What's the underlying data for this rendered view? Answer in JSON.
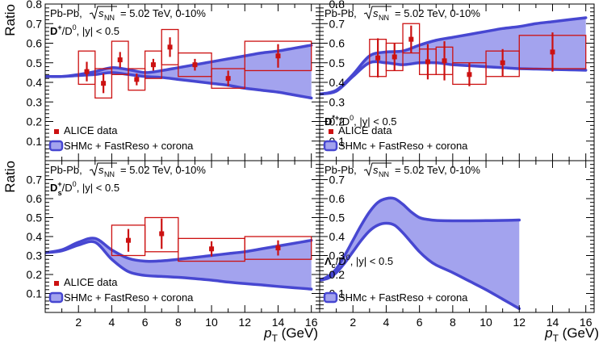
{
  "figure": {
    "x_axis_title": "p",
    "x_axis_title_sub": "T",
    "x_axis_title_unit": "(GeV)",
    "y_axis_title": "Ratio",
    "colors": {
      "band_fill": "#a3a3ee",
      "band_edge": "#4747d1",
      "data": "#cc1111",
      "frame": "#000000"
    }
  },
  "chart_data": [
    {
      "type": "scatter",
      "panel": "top-left",
      "energy_prefix": "Pb-Pb,",
      "energy_suffix": "= 5.02 TeV, 0-10%",
      "ratio_label": "D+/D0, |y| < 0.5",
      "ratio_main": "D",
      "ratio_sup": "+",
      "ratio_rest": "/D",
      "ratio_rest_sup": "0",
      "ratio_tail": ", |y| < 0.5",
      "legend_data": "ALICE data",
      "legend_model": "SHMc + FastReso + corona",
      "xlim": [
        0,
        16.5
      ],
      "ylim": [
        0,
        0.8
      ],
      "x_ticks": [
        2,
        4,
        6,
        8,
        10,
        12,
        14,
        16
      ],
      "y_ticks": [
        0.1,
        0.2,
        0.3,
        0.4,
        0.5,
        0.6,
        0.7,
        0.8
      ],
      "points": [
        {
          "x": 2.5,
          "y": 0.455,
          "stat": 0.05,
          "sys_lo": 0.39,
          "sys_hi": 0.56,
          "xlo": 2.0,
          "xhi": 3.0
        },
        {
          "x": 3.5,
          "y": 0.395,
          "stat": 0.05,
          "sys_lo": 0.32,
          "sys_hi": 0.47,
          "xlo": 3.0,
          "xhi": 4.0
        },
        {
          "x": 4.5,
          "y": 0.515,
          "stat": 0.04,
          "sys_lo": 0.44,
          "sys_hi": 0.61,
          "xlo": 4.0,
          "xhi": 5.0
        },
        {
          "x": 5.5,
          "y": 0.415,
          "stat": 0.03,
          "sys_lo": 0.36,
          "sys_hi": 0.47,
          "xlo": 5.0,
          "xhi": 6.0
        },
        {
          "x": 6.5,
          "y": 0.49,
          "stat": 0.03,
          "sys_lo": 0.42,
          "sys_hi": 0.56,
          "xlo": 6.0,
          "xhi": 7.0
        },
        {
          "x": 7.5,
          "y": 0.58,
          "stat": 0.05,
          "sys_lo": 0.49,
          "sys_hi": 0.67,
          "xlo": 7.0,
          "xhi": 8.0
        },
        {
          "x": 9.0,
          "y": 0.49,
          "stat": 0.03,
          "sys_lo": 0.43,
          "sys_hi": 0.55,
          "xlo": 8.0,
          "xhi": 10.0
        },
        {
          "x": 11.0,
          "y": 0.42,
          "stat": 0.04,
          "sys_lo": 0.37,
          "sys_hi": 0.47,
          "xlo": 10.0,
          "xhi": 12.0
        },
        {
          "x": 14.0,
          "y": 0.535,
          "stat": 0.06,
          "sys_lo": 0.46,
          "sys_hi": 0.61,
          "xlo": 12.0,
          "xhi": 16.0
        }
      ],
      "band_x": [
        0,
        1,
        2,
        3,
        4,
        5,
        6,
        7,
        8,
        9,
        10,
        11,
        12,
        13,
        14,
        15,
        16
      ],
      "band_upper": [
        0.43,
        0.43,
        0.44,
        0.455,
        0.475,
        0.465,
        0.45,
        0.46,
        0.475,
        0.49,
        0.505,
        0.52,
        0.535,
        0.55,
        0.56,
        0.575,
        0.59
      ],
      "band_lower": [
        0.43,
        0.43,
        0.435,
        0.44,
        0.45,
        0.44,
        0.43,
        0.425,
        0.415,
        0.405,
        0.395,
        0.385,
        0.37,
        0.36,
        0.35,
        0.335,
        0.32
      ]
    },
    {
      "type": "scatter",
      "panel": "top-right",
      "energy_prefix": "Pb-Pb,",
      "energy_suffix": "= 5.02 TeV, 0-10%",
      "ratio_label": "D*+/D0, |y| < 0.5",
      "ratio_main": "D",
      "ratio_sup": "*+",
      "ratio_rest": "/D",
      "ratio_rest_sup": "0",
      "ratio_tail": ", |y| < 0.5",
      "legend_data": "ALICE data",
      "legend_model": "SHMc + FastReso + corona",
      "xlim": [
        0,
        16.5
      ],
      "ylim": [
        0,
        0.8
      ],
      "x_ticks": [
        2,
        4,
        6,
        8,
        10,
        12,
        14,
        16
      ],
      "y_ticks": [
        0.1,
        0.2,
        0.3,
        0.4,
        0.5,
        0.6,
        0.7,
        0.8
      ],
      "points": [
        {
          "x": 3.5,
          "y": 0.525,
          "stat": 0.1,
          "sys_lo": 0.43,
          "sys_hi": 0.62,
          "xlo": 3.0,
          "xhi": 4.0
        },
        {
          "x": 4.5,
          "y": 0.53,
          "stat": 0.07,
          "sys_lo": 0.46,
          "sys_hi": 0.6,
          "xlo": 4.0,
          "xhi": 5.0
        },
        {
          "x": 5.5,
          "y": 0.62,
          "stat": 0.07,
          "sys_lo": 0.55,
          "sys_hi": 0.7,
          "xlo": 5.0,
          "xhi": 6.0
        },
        {
          "x": 6.5,
          "y": 0.505,
          "stat": 0.09,
          "sys_lo": 0.44,
          "sys_hi": 0.57,
          "xlo": 6.0,
          "xhi": 7.0
        },
        {
          "x": 7.5,
          "y": 0.51,
          "stat": 0.1,
          "sys_lo": 0.44,
          "sys_hi": 0.58,
          "xlo": 7.0,
          "xhi": 8.0
        },
        {
          "x": 9.0,
          "y": 0.44,
          "stat": 0.06,
          "sys_lo": 0.39,
          "sys_hi": 0.5,
          "xlo": 8.0,
          "xhi": 10.0
        },
        {
          "x": 11.0,
          "y": 0.5,
          "stat": 0.07,
          "sys_lo": 0.43,
          "sys_hi": 0.56,
          "xlo": 10.0,
          "xhi": 12.0
        },
        {
          "x": 14.0,
          "y": 0.555,
          "stat": 0.1,
          "sys_lo": 0.47,
          "sys_hi": 0.64,
          "xlo": 12.0,
          "xhi": 16.0
        }
      ],
      "band_x": [
        0,
        1,
        2,
        3,
        4,
        5,
        6,
        7,
        8,
        9,
        10,
        11,
        12,
        13,
        14,
        15,
        16
      ],
      "band_upper": [
        0.34,
        0.36,
        0.44,
        0.535,
        0.555,
        0.56,
        0.59,
        0.615,
        0.63,
        0.645,
        0.66,
        0.675,
        0.685,
        0.7,
        0.71,
        0.72,
        0.73
      ],
      "band_lower": [
        0.34,
        0.355,
        0.43,
        0.5,
        0.5,
        0.49,
        0.5,
        0.5,
        0.49,
        0.485,
        0.48,
        0.475,
        0.47,
        0.468,
        0.466,
        0.464,
        0.462
      ]
    },
    {
      "type": "scatter",
      "panel": "bottom-left",
      "energy_prefix": "Pb-Pb,",
      "energy_suffix": "= 5.02 TeV, 0-10%",
      "ratio_label": "Ds+/D0, |y| < 0.5",
      "ratio_main": "D",
      "ratio_sub": "s",
      "ratio_sup": "+",
      "ratio_rest": "/D",
      "ratio_rest_sup": "0",
      "ratio_tail": ", |y| < 0.5",
      "legend_data": "ALICE data",
      "legend_model": "SHMc + FastReso + corona",
      "xlim": [
        0,
        16.5
      ],
      "ylim": [
        0,
        0.8
      ],
      "x_ticks": [
        2,
        4,
        6,
        8,
        10,
        12,
        14,
        16
      ],
      "y_ticks": [
        0.1,
        0.2,
        0.3,
        0.4,
        0.5,
        0.6,
        0.7
      ],
      "points": [
        {
          "x": 5.0,
          "y": 0.38,
          "stat": 0.06,
          "sys_lo": 0.3,
          "sys_hi": 0.46,
          "xlo": 4.0,
          "xhi": 6.0
        },
        {
          "x": 7.0,
          "y": 0.415,
          "stat": 0.08,
          "sys_lo": 0.32,
          "sys_hi": 0.5,
          "xlo": 6.0,
          "xhi": 8.0
        },
        {
          "x": 10.0,
          "y": 0.335,
          "stat": 0.04,
          "sys_lo": 0.27,
          "sys_hi": 0.39,
          "xlo": 8.0,
          "xhi": 12.0
        },
        {
          "x": 14.0,
          "y": 0.34,
          "stat": 0.04,
          "sys_lo": 0.28,
          "sys_hi": 0.4,
          "xlo": 12.0,
          "xhi": 16.0
        }
      ],
      "band_x": [
        0,
        1,
        2,
        3,
        4,
        5,
        6,
        7,
        8,
        9,
        10,
        11,
        12,
        13,
        14,
        15,
        16
      ],
      "band_upper": [
        0.315,
        0.33,
        0.37,
        0.39,
        0.33,
        0.285,
        0.27,
        0.272,
        0.28,
        0.29,
        0.3,
        0.31,
        0.32,
        0.335,
        0.35,
        0.365,
        0.38
      ],
      "band_lower": [
        0.315,
        0.325,
        0.355,
        0.37,
        0.28,
        0.215,
        0.195,
        0.19,
        0.185,
        0.178,
        0.17,
        0.16,
        0.152,
        0.145,
        0.137,
        0.13,
        0.123
      ]
    },
    {
      "type": "area",
      "panel": "bottom-right",
      "energy_prefix": "Pb-Pb,",
      "energy_suffix": "= 5.02 TeV, 0-10%",
      "ratio_label": "Λc/D0, |y| < 0.5",
      "ratio_main": "Λ",
      "ratio_sub": "c",
      "ratio_rest": "/D",
      "ratio_rest_sup": "0",
      "ratio_tail": ", |y| < 0.5",
      "legend_model": "SHMc + FastReso + corona",
      "xlim": [
        0,
        16.5
      ],
      "ylim": [
        0,
        0.8
      ],
      "x_ticks": [
        2,
        4,
        6,
        8,
        10,
        12,
        14,
        16
      ],
      "y_ticks": [
        0.1,
        0.2,
        0.3,
        0.4,
        0.5,
        0.6,
        0.7
      ],
      "points": [],
      "band_x": [
        0,
        0.5,
        1,
        1.5,
        2,
        2.5,
        3,
        3.5,
        4,
        4.5,
        5,
        5.5,
        6,
        6.5,
        7,
        8,
        9,
        10,
        11,
        12
      ],
      "band_upper": [
        0.17,
        0.19,
        0.23,
        0.3,
        0.38,
        0.46,
        0.53,
        0.58,
        0.6,
        0.6,
        0.57,
        0.53,
        0.5,
        0.49,
        0.485,
        0.483,
        0.483,
        0.484,
        0.485,
        0.487
      ],
      "band_lower": [
        0.17,
        0.18,
        0.21,
        0.26,
        0.32,
        0.38,
        0.43,
        0.46,
        0.47,
        0.46,
        0.42,
        0.37,
        0.32,
        0.28,
        0.25,
        0.21,
        0.165,
        0.12,
        0.07,
        0.02
      ]
    }
  ]
}
